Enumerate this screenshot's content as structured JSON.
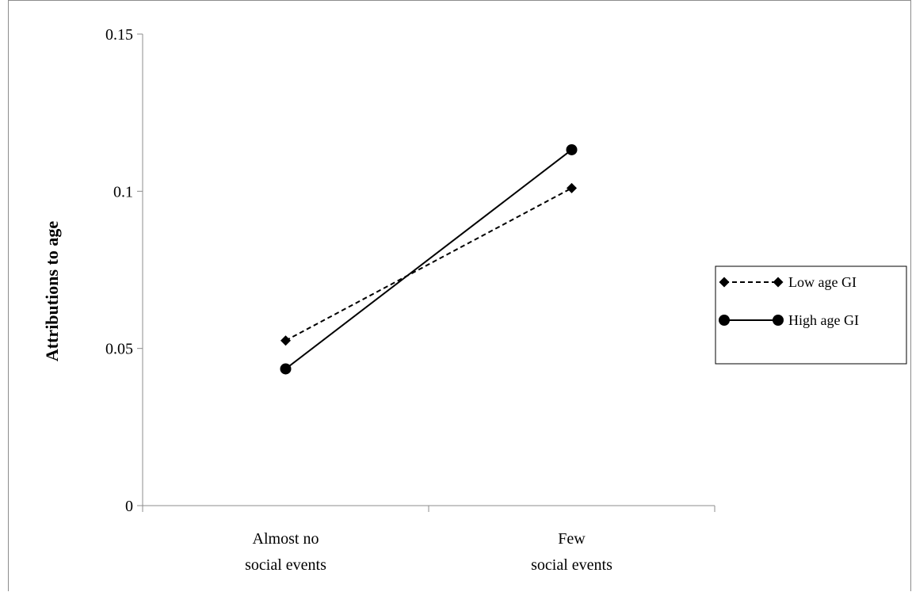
{
  "chart_data": {
    "type": "line",
    "title": "",
    "xlabel": "",
    "ylabel": "Attributions to age",
    "categories": [
      [
        "Almost no",
        "social events"
      ],
      [
        "Few",
        "social events"
      ]
    ],
    "ylim": [
      0,
      0.15
    ],
    "yticks": [
      0,
      0.05,
      0.1,
      0.15
    ],
    "ytick_labels": [
      "0",
      "0.05",
      "0.1",
      "0.15"
    ],
    "grid": false,
    "legend_position": "right",
    "series": [
      {
        "name": "Low age GI",
        "values": [
          0.0525,
          0.101
        ],
        "line_style": "dashed",
        "marker": "diamond",
        "color": "#000000"
      },
      {
        "name": "High age GI",
        "values": [
          0.0435,
          0.1132
        ],
        "line_style": "solid",
        "marker": "circle",
        "color": "#000000"
      }
    ]
  }
}
